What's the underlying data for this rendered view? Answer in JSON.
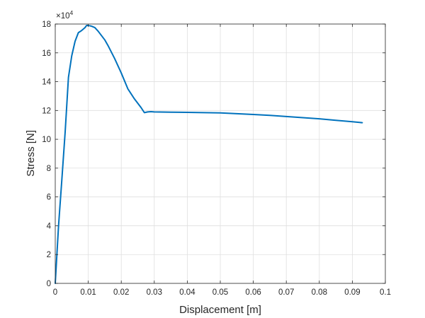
{
  "chart_data": {
    "type": "line",
    "title": "",
    "xlabel": "Displacement [m]",
    "ylabel": "Stress [N]",
    "xlim": [
      0,
      0.1
    ],
    "ylim": [
      0,
      18
    ],
    "y_exponent_label": {
      "base": "×10",
      "power": "4"
    },
    "grid": true,
    "x_ticks": [
      0,
      0.01,
      0.02,
      0.03,
      0.04,
      0.05,
      0.06,
      0.07,
      0.08,
      0.09,
      0.1
    ],
    "x_tick_labels": [
      "0",
      "0.01",
      "0.02",
      "0.03",
      "0.04",
      "0.05",
      "0.06",
      "0.07",
      "0.08",
      "0.09",
      "0.1"
    ],
    "y_ticks": [
      0,
      2,
      4,
      6,
      8,
      10,
      12,
      14,
      16,
      18
    ],
    "y_tick_labels": [
      "0",
      "2",
      "4",
      "6",
      "8",
      "10",
      "12",
      "14",
      "16",
      "18"
    ],
    "series": [
      {
        "color": "#0072BD",
        "x": [
          0,
          0.0005,
          0.001,
          0.002,
          0.003,
          0.004,
          0.005,
          0.006,
          0.007,
          0.008,
          0.009,
          0.0095,
          0.01,
          0.011,
          0.012,
          0.013,
          0.014,
          0.015,
          0.016,
          0.018,
          0.02,
          0.022,
          0.024,
          0.026,
          0.027,
          0.028,
          0.029,
          0.03,
          0.035,
          0.04,
          0.045,
          0.05,
          0.055,
          0.06,
          0.065,
          0.07,
          0.075,
          0.08,
          0.085,
          0.09,
          0.093
        ],
        "y": [
          0,
          2.0,
          4.0,
          7.2,
          10.5,
          14.3,
          15.8,
          16.8,
          17.4,
          17.55,
          17.75,
          17.9,
          17.9,
          17.85,
          17.75,
          17.5,
          17.2,
          16.9,
          16.5,
          15.6,
          14.6,
          13.5,
          12.8,
          12.2,
          11.85,
          11.9,
          11.92,
          11.9,
          11.88,
          11.87,
          11.85,
          11.83,
          11.78,
          11.72,
          11.66,
          11.58,
          11.5,
          11.42,
          11.32,
          11.22,
          11.15
        ]
      }
    ]
  }
}
